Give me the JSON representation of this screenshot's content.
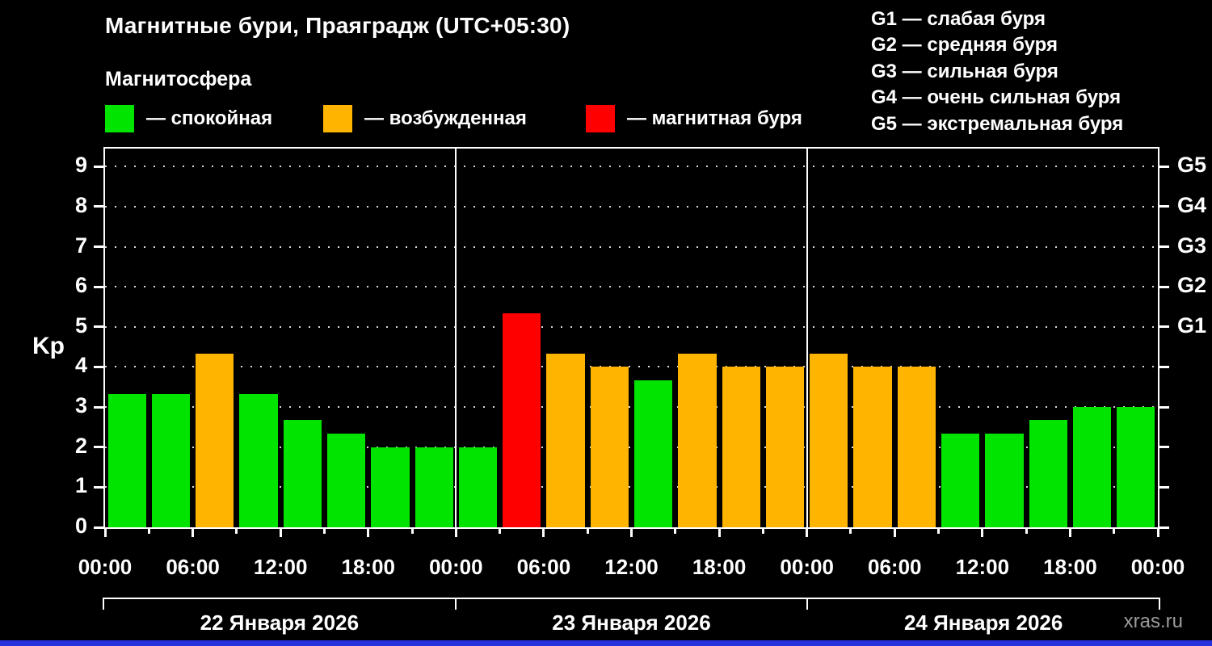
{
  "header": {
    "title": "Магнитные бури, Праяградж (UTC+05:30)",
    "subtitle": "Магнитосфера"
  },
  "legend": [
    {
      "name": "quiet",
      "label": "— спокойная",
      "color": "#00e400"
    },
    {
      "name": "excited",
      "label": "— возбужденная",
      "color": "#ffb400"
    },
    {
      "name": "storm",
      "label": "— магнитная буря",
      "color": "#ff0000"
    }
  ],
  "storm_scale_legend": [
    "G1 — слабая буря",
    "G2 — средняя буря",
    "G3 — сильная буря",
    "G4 — очень сильная буря",
    "G5 — экстремальная буря"
  ],
  "watermark": "xras.ru",
  "chart_data": {
    "type": "bar",
    "title": "Магнитные бури, Праяградж (UTC+05:30)",
    "ylabel": "Kp",
    "ylim": [
      0,
      9
    ],
    "yticks": [
      0,
      1,
      2,
      3,
      4,
      5,
      6,
      7,
      8,
      9
    ],
    "right_axis": [
      {
        "kp": 5,
        "label": "G1"
      },
      {
        "kp": 6,
        "label": "G2"
      },
      {
        "kp": 7,
        "label": "G3"
      },
      {
        "kp": 8,
        "label": "G4"
      },
      {
        "kp": 9,
        "label": "G5"
      }
    ],
    "x_tick_labels": [
      "00:00",
      "06:00",
      "12:00",
      "18:00",
      "00:00",
      "06:00",
      "12:00",
      "18:00",
      "00:00",
      "06:00",
      "12:00",
      "18:00",
      "00:00"
    ],
    "bar_interval_hours": 3,
    "days": [
      {
        "date": "22 Января 2026",
        "values": [
          3.33,
          3.33,
          4.33,
          3.33,
          2.67,
          2.33,
          2.0,
          2.0
        ]
      },
      {
        "date": "23 Января 2026",
        "values": [
          2.0,
          5.33,
          4.33,
          4.0,
          3.67,
          4.33,
          4.0,
          4.0
        ]
      },
      {
        "date": "24 Января 2026",
        "values": [
          4.33,
          4.0,
          4.0,
          2.33,
          2.33,
          2.67,
          3.0,
          3.0
        ]
      }
    ],
    "color_rules": {
      "excited_min": 4,
      "storm_min": 5
    },
    "colors": {
      "quiet": "#00e400",
      "excited": "#ffb400",
      "storm": "#ff0000"
    },
    "grid": "dotted-horizontal",
    "legend_position": "top"
  }
}
